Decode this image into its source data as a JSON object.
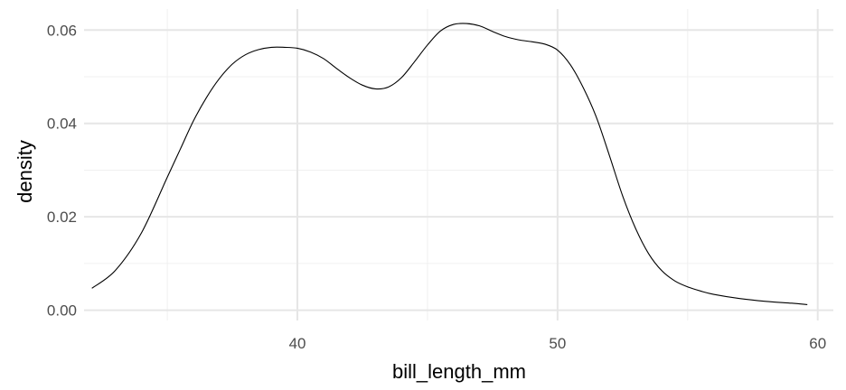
{
  "chart_data": {
    "type": "line",
    "title": "",
    "xlabel": "bill_length_mm",
    "ylabel": "density",
    "xlim": [
      31.8,
      60.6
    ],
    "ylim": [
      -0.0022,
      0.0645
    ],
    "x_ticks": [
      40,
      50,
      60
    ],
    "x_tick_labels": [
      "40",
      "50",
      "60"
    ],
    "x_minor_ticks": [
      35,
      45,
      55
    ],
    "y_ticks": [
      0.0,
      0.02,
      0.04,
      0.06
    ],
    "y_tick_labels": [
      "0.00",
      "0.02",
      "0.04",
      "0.06"
    ],
    "y_minor_ticks": [
      0.01,
      0.03,
      0.05
    ],
    "grid": true,
    "legend": "none",
    "colors": {
      "line": "#000000",
      "grid": "#e6e6e6",
      "background": "#ffffff"
    },
    "series": [
      {
        "x": [
          32.1,
          33.0,
          34.0,
          35.0,
          35.5,
          36.0,
          36.5,
          37.0,
          37.5,
          38.0,
          38.5,
          39.0,
          39.5,
          40.0,
          40.5,
          41.0,
          41.5,
          42.0,
          42.5,
          43.0,
          43.5,
          44.0,
          44.5,
          45.0,
          45.5,
          46.0,
          46.5,
          47.0,
          47.5,
          48.0,
          48.5,
          49.0,
          49.5,
          50.0,
          50.5,
          51.0,
          51.5,
          52.0,
          52.5,
          53.0,
          53.5,
          54.0,
          54.5,
          55.0,
          55.5,
          56.0,
          57.0,
          58.0,
          59.0,
          59.6
        ],
        "y": [
          0.0047,
          0.0085,
          0.0165,
          0.0285,
          0.0345,
          0.0405,
          0.0455,
          0.0496,
          0.0527,
          0.0547,
          0.0558,
          0.0563,
          0.0563,
          0.0561,
          0.0553,
          0.0539,
          0.0518,
          0.0498,
          0.0482,
          0.0474,
          0.0478,
          0.0498,
          0.0532,
          0.0568,
          0.0598,
          0.0612,
          0.0614,
          0.0609,
          0.0597,
          0.0586,
          0.0579,
          0.0575,
          0.057,
          0.0557,
          0.0525,
          0.0475,
          0.0412,
          0.033,
          0.0245,
          0.0175,
          0.0121,
          0.0085,
          0.0063,
          0.005,
          0.0041,
          0.0034,
          0.0025,
          0.0019,
          0.0015,
          0.0012
        ]
      }
    ]
  }
}
